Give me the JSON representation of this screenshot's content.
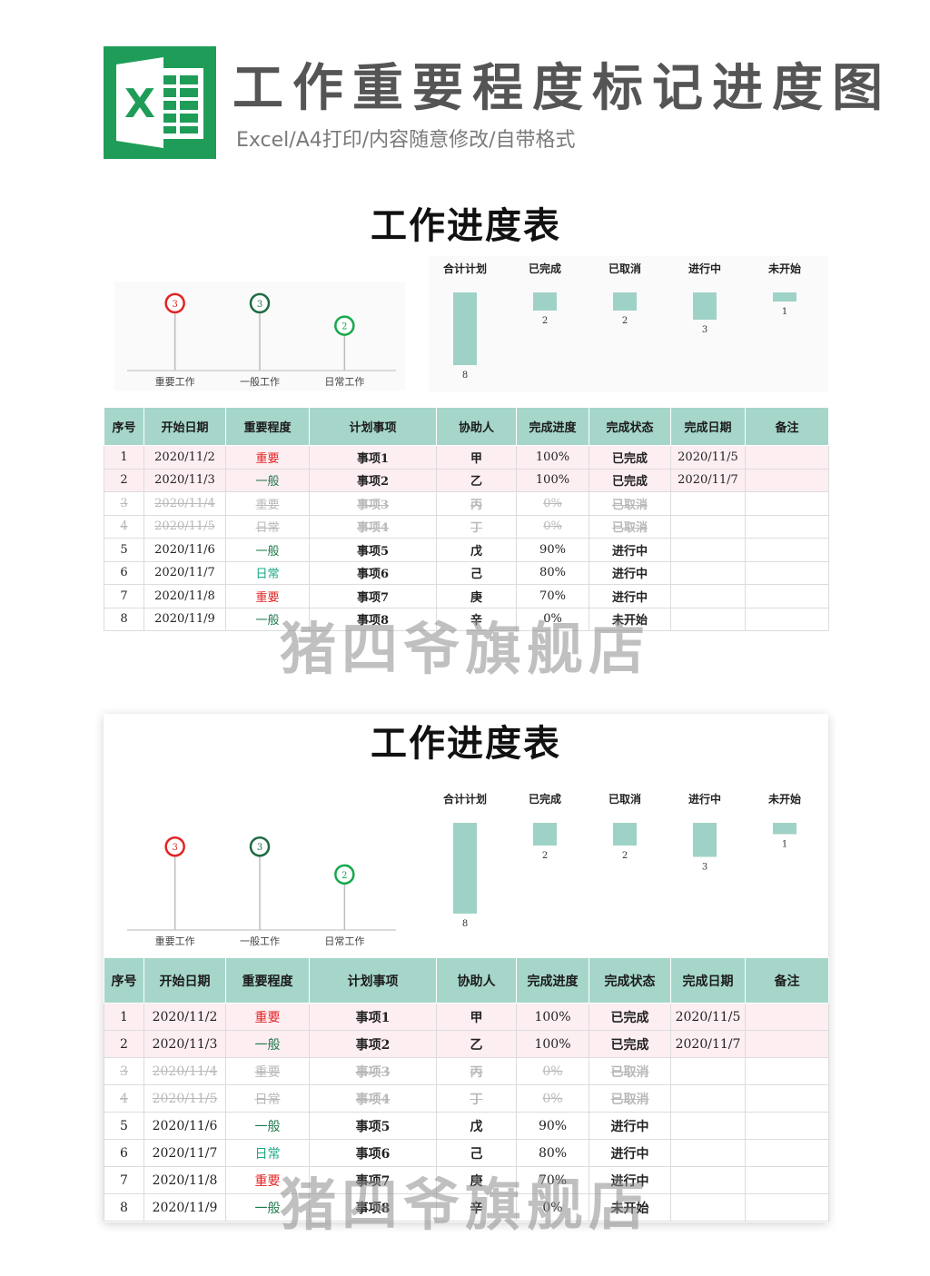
{
  "header": {
    "logo_letter": "X",
    "title": "工作重要程度标记进度图",
    "subtitle": "Excel/A4打印/内容随意修改/自带格式"
  },
  "sheet": {
    "title": "工作进度表"
  },
  "pin_chart": {
    "type": "lollipop",
    "categories": [
      "重要工作",
      "一般工作",
      "日常工作"
    ],
    "values": [
      3,
      3,
      2
    ],
    "colors": [
      "#e12424",
      "#1f6b42",
      "#17a84a"
    ]
  },
  "chart_data": {
    "type": "bar",
    "categories": [
      "合计计划",
      "已完成",
      "已取消",
      "进行中",
      "未开始"
    ],
    "values": [
      8,
      2,
      2,
      3,
      1
    ],
    "bar_color": "#9fd2c6",
    "orientation": "downward"
  },
  "table": {
    "columns": [
      "序号",
      "开始日期",
      "重要程度",
      "计划事项",
      "协助人",
      "完成进度",
      "完成状态",
      "完成日期",
      "备注"
    ],
    "rows": [
      {
        "no": "1",
        "start": "2020/11/2",
        "importance": "重要",
        "item": "事项1",
        "helper": "甲",
        "progress": "100%",
        "status": "已完成",
        "finish": "2020/11/5",
        "note": ""
      },
      {
        "no": "2",
        "start": "2020/11/3",
        "importance": "一般",
        "item": "事项2",
        "helper": "乙",
        "progress": "100%",
        "status": "已完成",
        "finish": "2020/11/7",
        "note": ""
      },
      {
        "no": "3",
        "start": "2020/11/4",
        "importance": "重要",
        "item": "事项3",
        "helper": "丙",
        "progress": "0%",
        "status": "已取消",
        "finish": "",
        "note": ""
      },
      {
        "no": "4",
        "start": "2020/11/5",
        "importance": "日常",
        "item": "事项4",
        "helper": "丁",
        "progress": "0%",
        "status": "已取消",
        "finish": "",
        "note": ""
      },
      {
        "no": "5",
        "start": "2020/11/6",
        "importance": "一般",
        "item": "事项5",
        "helper": "戊",
        "progress": "90%",
        "status": "进行中",
        "finish": "",
        "note": ""
      },
      {
        "no": "6",
        "start": "2020/11/7",
        "importance": "日常",
        "item": "事项6",
        "helper": "己",
        "progress": "80%",
        "status": "进行中",
        "finish": "",
        "note": ""
      },
      {
        "no": "7",
        "start": "2020/11/8",
        "importance": "重要",
        "item": "事项7",
        "helper": "庚",
        "progress": "70%",
        "status": "进行中",
        "finish": "",
        "note": ""
      },
      {
        "no": "8",
        "start": "2020/11/9",
        "importance": "一般",
        "item": "事项8",
        "helper": "辛",
        "progress": "0%",
        "status": "未开始",
        "finish": "",
        "note": ""
      }
    ]
  },
  "watermark": "猪四爷旗舰店",
  "colors": {
    "header_green": "#a6d6ca",
    "done_row": "#fdeef2",
    "excel_green": "#21a366"
  }
}
